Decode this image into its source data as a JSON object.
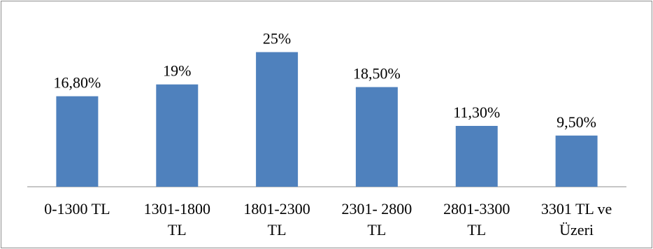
{
  "chart_data": {
    "type": "bar",
    "categories": [
      [
        "0-1300 TL"
      ],
      [
        "1301-1800",
        "TL"
      ],
      [
        "1801-2300",
        "TL"
      ],
      [
        "2301- 2800",
        "TL"
      ],
      [
        "2801-3300",
        "TL"
      ],
      [
        "3301 TL ve",
        "Üzeri"
      ]
    ],
    "values": [
      16.8,
      19,
      25,
      18.5,
      11.3,
      9.5
    ],
    "data_labels": [
      "16,80%",
      "19%",
      "25%",
      "18,50%",
      "11,30%",
      "9,50%"
    ],
    "ylim": [
      0,
      26
    ],
    "grid": false,
    "legend": "none",
    "colors": {
      "bar": "#4f81bd",
      "axis": "#8c8c8c",
      "border": "#8c8c8c"
    }
  }
}
